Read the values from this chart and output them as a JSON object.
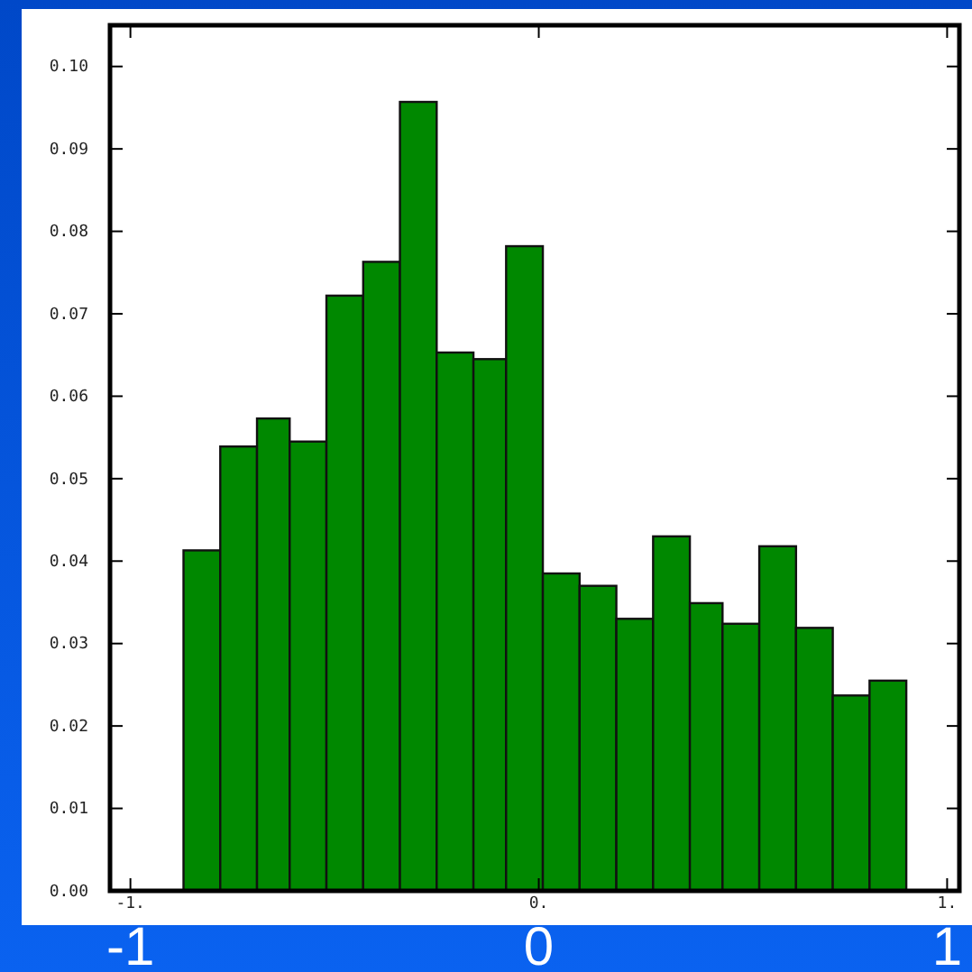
{
  "chart_data": {
    "type": "histogram",
    "bins": [
      -0.87,
      -0.78,
      -0.69,
      -0.61,
      -0.52,
      -0.43,
      -0.34,
      -0.25,
      -0.16,
      -0.08,
      0.01,
      0.1,
      0.19,
      0.28,
      0.37,
      0.45,
      0.54,
      0.63,
      0.72,
      0.81,
      0.9
    ],
    "values": [
      0.0413,
      0.0539,
      0.0573,
      0.0545,
      0.0722,
      0.0763,
      0.0957,
      0.0653,
      0.0645,
      0.0782,
      0.0385,
      0.037,
      0.033,
      0.043,
      0.0349,
      0.0324,
      0.0418,
      0.0319,
      0.0237,
      0.0255
    ],
    "color": "#008800",
    "xlim": [
      -1.05,
      1.03
    ],
    "xticks": [
      {
        "value": -1,
        "label": "-1."
      },
      {
        "value": 0,
        "label": "0."
      },
      {
        "value": 1,
        "label": "1."
      }
    ],
    "ylim": [
      0,
      0.105
    ],
    "yticks": [
      {
        "value": 0,
        "label": "0.00"
      },
      {
        "value": 0.01,
        "label": "0.01"
      },
      {
        "value": 0.02,
        "label": "0.02"
      },
      {
        "value": 0.03,
        "label": "0.03"
      },
      {
        "value": 0.04,
        "label": "0.04"
      },
      {
        "value": 0.05,
        "label": "0.05"
      },
      {
        "value": 0.06,
        "label": "0.06"
      },
      {
        "value": 0.07,
        "label": "0.07"
      },
      {
        "value": 0.08,
        "label": "0.08"
      },
      {
        "value": 0.09,
        "label": "0.09"
      },
      {
        "value": 0.1,
        "label": "0.10"
      }
    ],
    "annotations": [
      "-1",
      "0",
      "1"
    ],
    "grid": false
  }
}
